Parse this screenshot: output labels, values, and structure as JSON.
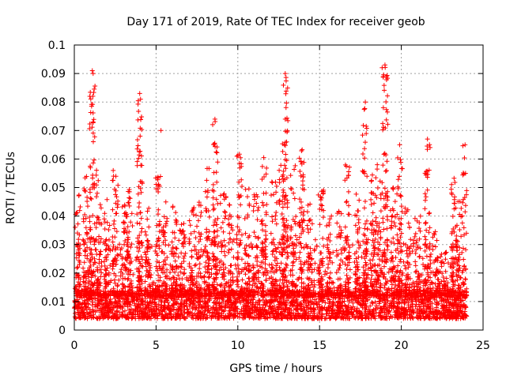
{
  "chart_data": {
    "type": "scatter",
    "title": "Day 171 of 2019, Rate Of TEC Index for receiver geob",
    "xlabel": "GPS time / hours",
    "ylabel": "ROTI / TECUs",
    "xlim": [
      0,
      25
    ],
    "ylim": [
      0,
      0.1
    ],
    "xticks": [
      "0",
      "5",
      "10",
      "15",
      "20",
      "25"
    ],
    "yticks": [
      "0",
      "0.01",
      "0.02",
      "0.03",
      "0.04",
      "0.05",
      "0.06",
      "0.07",
      "0.08",
      "0.09",
      "0.1"
    ],
    "grid": true,
    "legend": "none",
    "marker": "+",
    "color": "#ff0000",
    "x_extent_hours": [
      0,
      24
    ],
    "notable_points": [
      {
        "x": 1.1,
        "y": 0.091
      },
      {
        "x": 1.15,
        "y": 0.09
      },
      {
        "x": 0.95,
        "y": 0.082
      },
      {
        "x": 4.0,
        "y": 0.083
      },
      {
        "x": 4.05,
        "y": 0.081
      },
      {
        "x": 12.9,
        "y": 0.09
      },
      {
        "x": 12.9,
        "y": 0.074
      },
      {
        "x": 17.8,
        "y": 0.08
      },
      {
        "x": 19.0,
        "y": 0.093
      },
      {
        "x": 18.9,
        "y": 0.078
      },
      {
        "x": 8.6,
        "y": 0.074
      },
      {
        "x": 5.3,
        "y": 0.07
      },
      {
        "x": 23.9,
        "y": 0.065
      },
      {
        "x": 21.6,
        "y": 0.067
      },
      {
        "x": 19.9,
        "y": 0.065
      }
    ],
    "peaks": [
      {
        "x": 0.2,
        "y": 0.048
      },
      {
        "x": 0.7,
        "y": 0.055
      },
      {
        "x": 1.1,
        "y": 0.091
      },
      {
        "x": 1.5,
        "y": 0.058
      },
      {
        "x": 2.0,
        "y": 0.046
      },
      {
        "x": 2.5,
        "y": 0.057
      },
      {
        "x": 3.1,
        "y": 0.045
      },
      {
        "x": 3.4,
        "y": 0.05
      },
      {
        "x": 4.0,
        "y": 0.083
      },
      {
        "x": 4.5,
        "y": 0.045
      },
      {
        "x": 5.1,
        "y": 0.054
      },
      {
        "x": 5.5,
        "y": 0.048
      },
      {
        "x": 6.1,
        "y": 0.044
      },
      {
        "x": 6.6,
        "y": 0.038
      },
      {
        "x": 7.2,
        "y": 0.043
      },
      {
        "x": 7.6,
        "y": 0.045
      },
      {
        "x": 8.1,
        "y": 0.058
      },
      {
        "x": 8.6,
        "y": 0.074
      },
      {
        "x": 9.1,
        "y": 0.048
      },
      {
        "x": 9.6,
        "y": 0.045
      },
      {
        "x": 10.1,
        "y": 0.063
      },
      {
        "x": 10.6,
        "y": 0.05
      },
      {
        "x": 11.1,
        "y": 0.048
      },
      {
        "x": 11.6,
        "y": 0.063
      },
      {
        "x": 12.2,
        "y": 0.054
      },
      {
        "x": 12.7,
        "y": 0.058
      },
      {
        "x": 12.9,
        "y": 0.09
      },
      {
        "x": 13.4,
        "y": 0.058
      },
      {
        "x": 13.9,
        "y": 0.066
      },
      {
        "x": 14.4,
        "y": 0.045
      },
      {
        "x": 15.1,
        "y": 0.05
      },
      {
        "x": 15.6,
        "y": 0.04
      },
      {
        "x": 16.2,
        "y": 0.045
      },
      {
        "x": 16.7,
        "y": 0.058
      },
      {
        "x": 17.3,
        "y": 0.048
      },
      {
        "x": 17.8,
        "y": 0.08
      },
      {
        "x": 18.3,
        "y": 0.055
      },
      {
        "x": 18.6,
        "y": 0.06
      },
      {
        "x": 19.0,
        "y": 0.093
      },
      {
        "x": 19.5,
        "y": 0.05
      },
      {
        "x": 19.9,
        "y": 0.065
      },
      {
        "x": 20.4,
        "y": 0.044
      },
      {
        "x": 21.0,
        "y": 0.04
      },
      {
        "x": 21.6,
        "y": 0.067
      },
      {
        "x": 22.1,
        "y": 0.035
      },
      {
        "x": 22.6,
        "y": 0.028
      },
      {
        "x": 23.2,
        "y": 0.055
      },
      {
        "x": 23.5,
        "y": 0.048
      },
      {
        "x": 23.9,
        "y": 0.065
      }
    ],
    "baseline_band": [
      0.004,
      0.014
    ]
  }
}
